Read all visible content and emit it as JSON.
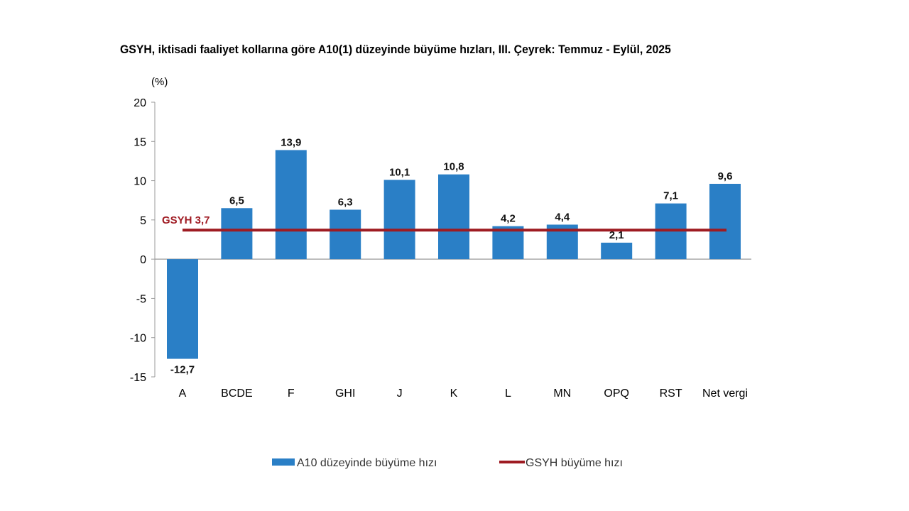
{
  "chart_data": {
    "type": "bar",
    "title": "GSYH, iktisadi faaliyet kollarına göre A10(1) düzeyinde büyüme hızları, III. Çeyrek: Temmuz - Eylül, 2025",
    "unit_label": "(%)",
    "xlabel": "",
    "ylabel": "(%)",
    "ylim": [
      -15,
      20
    ],
    "yticks": [
      20,
      15,
      10,
      5,
      0,
      -5,
      -10,
      -15
    ],
    "grid": false,
    "categories": [
      "A",
      "BCDE",
      "F",
      "GHI",
      "J",
      "K",
      "L",
      "MN",
      "OPQ",
      "RST",
      "Net vergi"
    ],
    "series": [
      {
        "name": "A10 düzeyinde büyüme hızı",
        "type": "bar",
        "color": "#2a7fc6",
        "values": [
          -12.7,
          6.5,
          13.9,
          6.3,
          10.1,
          10.8,
          4.2,
          4.4,
          2.1,
          7.1,
          9.6
        ],
        "labels": [
          "-12,7",
          "6,5",
          "13,9",
          "6,3",
          "10,1",
          "10,8",
          "4,2",
          "4,4",
          "2,1",
          "7,1",
          "9,6"
        ]
      },
      {
        "name": "GSYH büyüme hızı",
        "type": "line",
        "color": "#9e1b22",
        "value": 3.7,
        "annotation": "GSYH 3,7"
      }
    ],
    "legend": {
      "position": "bottom",
      "items": [
        {
          "label": "A10 düzeyinde büyüme hızı",
          "marker": "bar",
          "color": "#2a7fc6"
        },
        {
          "label": "GSYH büyüme hızı",
          "marker": "line",
          "color": "#9e1b22"
        }
      ]
    }
  }
}
